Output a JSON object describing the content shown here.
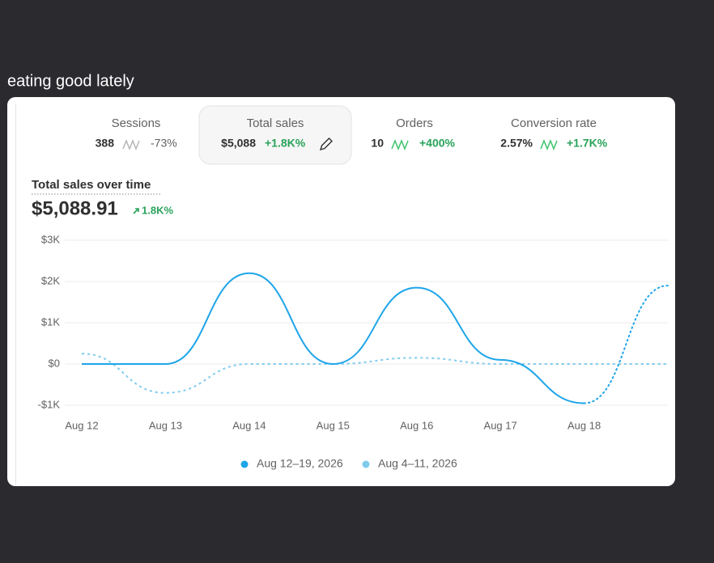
{
  "caption": "eating good lately",
  "metrics": [
    {
      "label": "Sessions",
      "value": "388",
      "change": "-73%",
      "color": "#616161"
    },
    {
      "label": "Total sales",
      "value": "$5,088",
      "change": "+1.8K%",
      "color": "#29a35a",
      "selected": true
    },
    {
      "label": "Orders",
      "value": "10",
      "change": "+400%",
      "color": "#29a35a"
    },
    {
      "label": "Conversion rate",
      "value": "2.57%",
      "change": "+1.7K%",
      "color": "#29a35a"
    }
  ],
  "chart_data": {
    "type": "line",
    "title": "Total sales over time",
    "total": "$5,088.91",
    "total_change": "1.8K%",
    "categories": [
      "Aug 12",
      "Aug 13",
      "Aug 14",
      "Aug 15",
      "Aug 16",
      "Aug 17",
      "Aug 18",
      null
    ],
    "series": [
      {
        "name": "Aug 12–19, 2026",
        "color": "#1ea5e9",
        "values": [
          0,
          0,
          2200,
          0,
          1850,
          100,
          -950,
          1900
        ],
        "last_segment_dotted": true
      },
      {
        "name": "Aug 4–11, 2026",
        "color": "#7fcbee",
        "values": [
          250,
          -700,
          0,
          0,
          150,
          0,
          0,
          0
        ],
        "dashed": true
      }
    ],
    "ylim": [
      -1000,
      3000
    ],
    "yticks": [
      {
        "value": -1000,
        "label": "-$1K"
      },
      {
        "value": 0,
        "label": "$0"
      },
      {
        "value": 1000,
        "label": "$1K"
      },
      {
        "value": 2000,
        "label": "$2K"
      },
      {
        "value": 3000,
        "label": "$3K"
      }
    ],
    "grid": true
  }
}
